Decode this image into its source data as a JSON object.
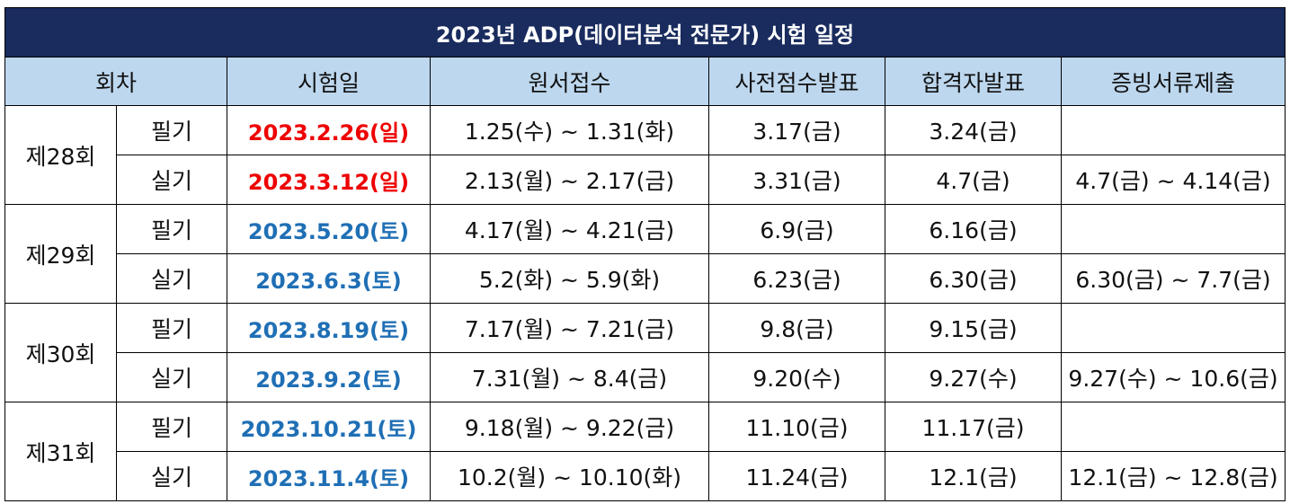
{
  "title": "2023년 ADP(데이터분석 전문가) 시험 일정",
  "headers": {
    "round": "회차",
    "exam_date": "시험일",
    "application": "원서접수",
    "pre_result": "사전점수발표",
    "pass_result": "합격자발표",
    "documents": "증빙서류제출"
  },
  "colors": {
    "title_bg": "#1a2c5e",
    "header_bg": "#bdd7ee",
    "sunday_date": "#ee0000",
    "saturday_date": "#1f6fb5"
  },
  "rounds": [
    {
      "round": "제28회",
      "rows": [
        {
          "kind": "필기",
          "exam_date": "2023.2.26(일)",
          "application": "1.25(수) ~ 1.31(화)",
          "pre_result": "3.17(금)",
          "pass_result": "3.24(금)",
          "documents": ""
        },
        {
          "kind": "실기",
          "exam_date": "2023.3.12(일)",
          "application": "2.13(월) ~ 2.17(금)",
          "pre_result": "3.31(금)",
          "pass_result": "4.7(금)",
          "documents": "4.7(금) ~ 4.14(금)"
        }
      ]
    },
    {
      "round": "제29회",
      "rows": [
        {
          "kind": "필기",
          "exam_date": "2023.5.20(토)",
          "application": "4.17(월) ~ 4.21(금)",
          "pre_result": "6.9(금)",
          "pass_result": "6.16(금)",
          "documents": ""
        },
        {
          "kind": "실기",
          "exam_date": "2023.6.3(토)",
          "application": "5.2(화) ~ 5.9(화)",
          "pre_result": "6.23(금)",
          "pass_result": "6.30(금)",
          "documents": "6.30(금) ~ 7.7(금)"
        }
      ]
    },
    {
      "round": "제30회",
      "rows": [
        {
          "kind": "필기",
          "exam_date": "2023.8.19(토)",
          "application": "7.17(월) ~ 7.21(금)",
          "pre_result": "9.8(금)",
          "pass_result": "9.15(금)",
          "documents": ""
        },
        {
          "kind": "실기",
          "exam_date": "2023.9.2(토)",
          "application": "7.31(월) ~ 8.4(금)",
          "pre_result": "9.20(수)",
          "pass_result": "9.27(수)",
          "documents": "9.27(수) ~ 10.6(금)"
        }
      ]
    },
    {
      "round": "제31회",
      "rows": [
        {
          "kind": "필기",
          "exam_date": "2023.10.21(토)",
          "application": "9.18(월) ~ 9.22(금)",
          "pre_result": "11.10(금)",
          "pass_result": "11.17(금)",
          "documents": ""
        },
        {
          "kind": "실기",
          "exam_date": "2023.11.4(토)",
          "application": "10.2(월) ~ 10.10(화)",
          "pre_result": "11.24(금)",
          "pass_result": "12.1(금)",
          "documents": "12.1(금) ~ 12.8(금)"
        }
      ]
    }
  ]
}
